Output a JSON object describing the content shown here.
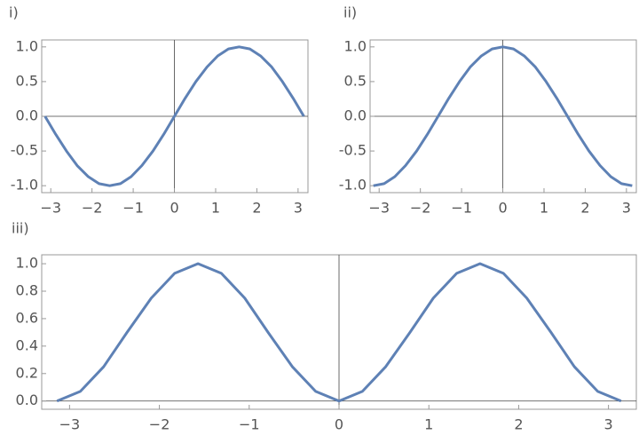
{
  "chart_data": [
    {
      "type": "line",
      "title": "i)",
      "x": [
        -3.14,
        -2.88,
        -2.62,
        -2.36,
        -2.09,
        -1.83,
        -1.57,
        -1.31,
        -1.05,
        -0.79,
        -0.52,
        -0.26,
        0,
        0.26,
        0.52,
        0.79,
        1.05,
        1.31,
        1.57,
        1.83,
        2.09,
        2.36,
        2.62,
        2.88,
        3.14
      ],
      "series": [
        {
          "color": "#5e81b5",
          "values": [
            0,
            -0.26,
            -0.5,
            -0.71,
            -0.87,
            -0.97,
            -1,
            -0.97,
            -0.87,
            -0.71,
            -0.5,
            -0.26,
            0,
            0.26,
            0.5,
            0.71,
            0.87,
            0.97,
            1,
            0.97,
            0.87,
            0.71,
            0.5,
            0.26,
            0
          ]
        }
      ],
      "xlim": [
        -3.22,
        3.24
      ],
      "ylim": [
        -1.1,
        1.1
      ],
      "xticks": [
        {
          "value": -3,
          "label": "−3"
        },
        {
          "value": -2,
          "label": "−2"
        },
        {
          "value": -1,
          "label": "−1"
        },
        0,
        1,
        2,
        3
      ],
      "yticks": [
        {
          "value": -1,
          "label": "-1.0"
        },
        {
          "value": -0.5,
          "label": "-0.5"
        },
        {
          "value": 0,
          "label": "0.0"
        },
        0.5,
        {
          "value": 1,
          "label": "1.0"
        }
      ]
    },
    {
      "type": "line",
      "title": "ii)",
      "x": [
        -3.14,
        -2.88,
        -2.62,
        -2.36,
        -2.09,
        -1.83,
        -1.57,
        -1.31,
        -1.05,
        -0.79,
        -0.52,
        -0.26,
        0,
        0.26,
        0.52,
        0.79,
        1.05,
        1.31,
        1.57,
        1.83,
        2.09,
        2.36,
        2.62,
        2.88,
        3.14
      ],
      "series": [
        {
          "color": "#5e81b5",
          "values": [
            -1,
            -0.97,
            -0.87,
            -0.71,
            -0.5,
            -0.26,
            0,
            0.26,
            0.5,
            0.71,
            0.87,
            0.97,
            1,
            0.97,
            0.87,
            0.71,
            0.5,
            0.26,
            0,
            -0.26,
            -0.5,
            -0.71,
            -0.87,
            -0.97,
            -1
          ]
        }
      ],
      "xlim": [
        -3.22,
        3.24
      ],
      "ylim": [
        -1.1,
        1.1
      ],
      "xticks": [
        {
          "value": -3,
          "label": "−3"
        },
        {
          "value": -2,
          "label": "−2"
        },
        {
          "value": -1,
          "label": "−1"
        },
        0,
        1,
        2,
        3
      ],
      "yticks": [
        {
          "value": -1,
          "label": "-1.0"
        },
        {
          "value": -0.5,
          "label": "-0.5"
        },
        {
          "value": 0,
          "label": "0.0"
        },
        0.5,
        {
          "value": 1,
          "label": "1.0"
        }
      ]
    },
    {
      "type": "line",
      "title": "iii)",
      "x": [
        -3.14,
        -2.88,
        -2.62,
        -2.36,
        -2.09,
        -1.83,
        -1.57,
        -1.31,
        -1.05,
        -0.79,
        -0.52,
        -0.26,
        0,
        0.26,
        0.52,
        0.79,
        1.05,
        1.31,
        1.57,
        1.83,
        2.09,
        2.36,
        2.62,
        2.88,
        3.14
      ],
      "series": [
        {
          "color": "#5e81b5",
          "values": [
            0,
            0.07,
            0.25,
            0.5,
            0.75,
            0.93,
            1,
            0.93,
            0.75,
            0.5,
            0.25,
            0.07,
            0,
            0.07,
            0.25,
            0.5,
            0.75,
            0.93,
            1,
            0.93,
            0.75,
            0.5,
            0.25,
            0.07,
            0
          ]
        }
      ],
      "xlim": [
        -3.31,
        3.31
      ],
      "ylim": [
        -0.06,
        1.065
      ],
      "xticks": [
        {
          "value": -3,
          "label": "−3"
        },
        {
          "value": -2,
          "label": "−2"
        },
        {
          "value": -1,
          "label": "−1"
        },
        0,
        1,
        2,
        3
      ],
      "yticks": [
        {
          "value": 0,
          "label": "0.0"
        },
        0.2,
        0.4,
        0.6,
        0.8,
        {
          "value": 1,
          "label": "1.0"
        }
      ]
    }
  ]
}
